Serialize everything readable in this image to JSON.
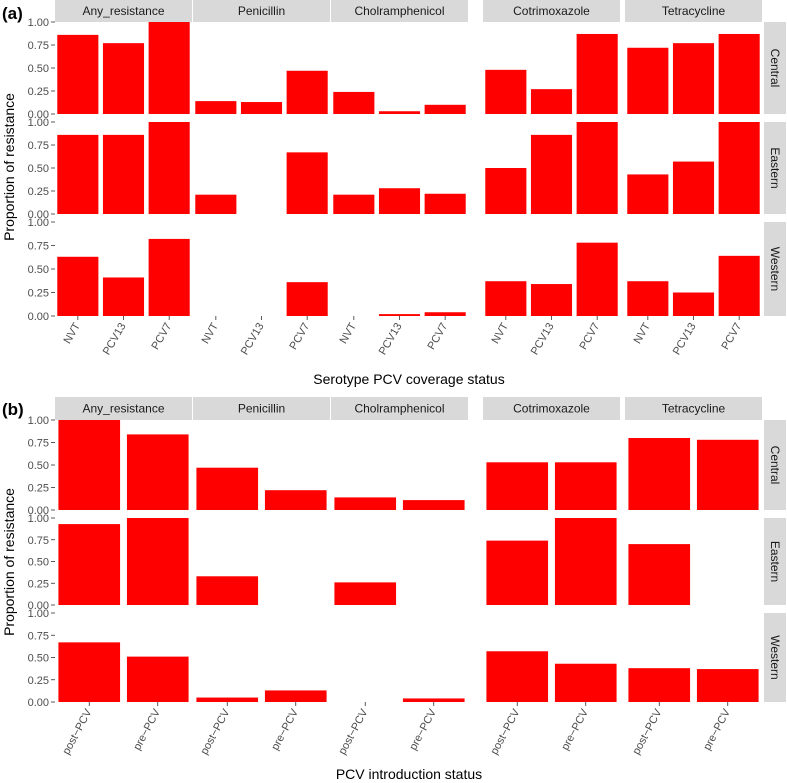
{
  "figure": {
    "bar_color": "#ff0000",
    "strip_color": "#d9d9d9"
  },
  "chart_data": [
    {
      "type": "bar",
      "panel_label": "(a)",
      "xlabel": "Serotype PCV coverage status",
      "ylabel": "Proportion of resistance",
      "facet_cols": [
        "Any_resistance",
        "Penicillin",
        "Cholramphenicol",
        "Cotrimoxazole",
        "Tetracycline"
      ],
      "facet_rows": [
        "Central",
        "Eastern",
        "Western"
      ],
      "categories": [
        "NVT",
        "PCV13",
        "PCV7"
      ],
      "ylim": [
        0,
        1
      ],
      "yticks": [
        "0.00",
        "0.25",
        "0.50",
        "0.75",
        "1.00"
      ],
      "grid": false,
      "values": {
        "Central": {
          "Any_resistance": [
            0.86,
            0.77,
            1.0
          ],
          "Penicillin": [
            0.14,
            0.13,
            0.47
          ],
          "Cholramphenicol": [
            0.24,
            0.03,
            0.1
          ],
          "Cotrimoxazole": [
            0.48,
            0.27,
            0.87
          ],
          "Tetracycline": [
            0.72,
            0.77,
            0.87
          ]
        },
        "Eastern": {
          "Any_resistance": [
            0.86,
            0.86,
            1.0
          ],
          "Penicillin": [
            0.21,
            0.0,
            0.67
          ],
          "Cholramphenicol": [
            0.21,
            0.28,
            0.22
          ],
          "Cotrimoxazole": [
            0.5,
            0.86,
            1.0
          ],
          "Tetracycline": [
            0.43,
            0.57,
            1.0
          ]
        },
        "Western": {
          "Any_resistance": [
            0.63,
            0.41,
            0.82
          ],
          "Penicillin": [
            0.0,
            0.0,
            0.36
          ],
          "Cholramphenicol": [
            0.0,
            0.02,
            0.04
          ],
          "Cotrimoxazole": [
            0.37,
            0.34,
            0.78
          ],
          "Tetracycline": [
            0.37,
            0.25,
            0.64
          ]
        }
      }
    },
    {
      "type": "bar",
      "panel_label": "(b)",
      "xlabel": "PCV introduction status",
      "ylabel": "Proportion of resistance",
      "facet_cols": [
        "Any_resistance",
        "Penicillin",
        "Cholramphenicol",
        "Cotrimoxazole",
        "Tetracycline"
      ],
      "facet_rows": [
        "Central",
        "Eastern",
        "Western"
      ],
      "categories": [
        "post−PCV",
        "pre−PCV"
      ],
      "ylim": [
        0,
        1
      ],
      "yticks": [
        "0.00",
        "0.25",
        "0.50",
        "0.75",
        "1.00"
      ],
      "grid": false,
      "values": {
        "Central": {
          "Any_resistance": [
            1.0,
            0.84
          ],
          "Penicillin": [
            0.47,
            0.22
          ],
          "Cholramphenicol": [
            0.14,
            0.11
          ],
          "Cotrimoxazole": [
            0.53,
            0.53
          ],
          "Tetracycline": [
            0.8,
            0.78
          ]
        },
        "Eastern": {
          "Any_resistance": [
            0.93,
            1.0
          ],
          "Penicillin": [
            0.33,
            0.0
          ],
          "Cholramphenicol": [
            0.26,
            0.0
          ],
          "Cotrimoxazole": [
            0.74,
            1.0
          ],
          "Tetracycline": [
            0.7,
            0.0
          ]
        },
        "Western": {
          "Any_resistance": [
            0.67,
            0.51
          ],
          "Penicillin": [
            0.05,
            0.13
          ],
          "Cholramphenicol": [
            0.0,
            0.04
          ],
          "Cotrimoxazole": [
            0.57,
            0.43
          ],
          "Tetracycline": [
            0.38,
            0.37
          ]
        }
      }
    }
  ]
}
